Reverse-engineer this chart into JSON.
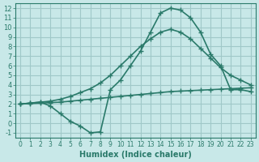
{
  "bg_color": "#c8e8e8",
  "grid_color": "#a0c8c8",
  "line_color": "#2a7a6a",
  "line_width": 1.2,
  "marker": "+",
  "markersize": 5,
  "xlim": [
    -0.5,
    23.5
  ],
  "ylim": [
    -1.5,
    12.5
  ],
  "xticks": [
    0,
    1,
    2,
    3,
    4,
    5,
    6,
    7,
    8,
    9,
    10,
    11,
    12,
    13,
    14,
    15,
    16,
    17,
    18,
    19,
    20,
    21,
    22,
    23
  ],
  "yticks": [
    -1,
    0,
    1,
    2,
    3,
    4,
    5,
    6,
    7,
    8,
    9,
    10,
    11,
    12
  ],
  "xlabel": "Humidex (Indice chaleur)",
  "curve1_x": [
    0,
    1,
    2,
    3,
    4,
    5,
    6,
    7,
    8,
    9,
    10,
    11,
    12,
    13,
    14,
    15,
    16,
    17,
    18,
    19,
    20,
    21,
    22,
    23
  ],
  "curve1_y": [
    2.0,
    2.1,
    2.2,
    2.3,
    2.5,
    2.8,
    3.2,
    3.6,
    4.2,
    5.0,
    6.0,
    7.0,
    8.0,
    8.8,
    9.5,
    9.8,
    9.5,
    8.8,
    7.8,
    6.8,
    5.8,
    5.0,
    4.5,
    4.0
  ],
  "curve2_x": [
    0,
    1,
    2,
    3,
    4,
    5,
    6,
    7,
    8,
    9,
    10,
    11,
    12,
    13,
    14,
    15,
    16,
    17,
    18,
    19,
    20,
    21,
    22,
    23
  ],
  "curve2_y": [
    2.0,
    2.05,
    2.1,
    2.15,
    2.2,
    2.3,
    2.4,
    2.5,
    2.6,
    2.7,
    2.8,
    2.9,
    3.0,
    3.1,
    3.2,
    3.3,
    3.35,
    3.4,
    3.45,
    3.5,
    3.55,
    3.6,
    3.65,
    3.7
  ],
  "curve3_x": [
    0,
    1,
    2,
    3,
    4,
    5,
    6,
    7,
    8,
    9,
    10,
    11,
    12,
    13,
    14,
    15,
    16,
    17,
    18,
    19,
    20,
    21,
    22,
    23
  ],
  "curve3_y": [
    2.0,
    2.1,
    2.2,
    1.8,
    1.0,
    0.2,
    -0.3,
    -1.0,
    -0.9,
    3.5,
    4.5,
    6.0,
    7.5,
    9.5,
    11.5,
    12.0,
    11.8,
    11.0,
    9.5,
    7.2,
    6.0,
    3.5,
    3.5,
    3.3
  ],
  "title": ""
}
